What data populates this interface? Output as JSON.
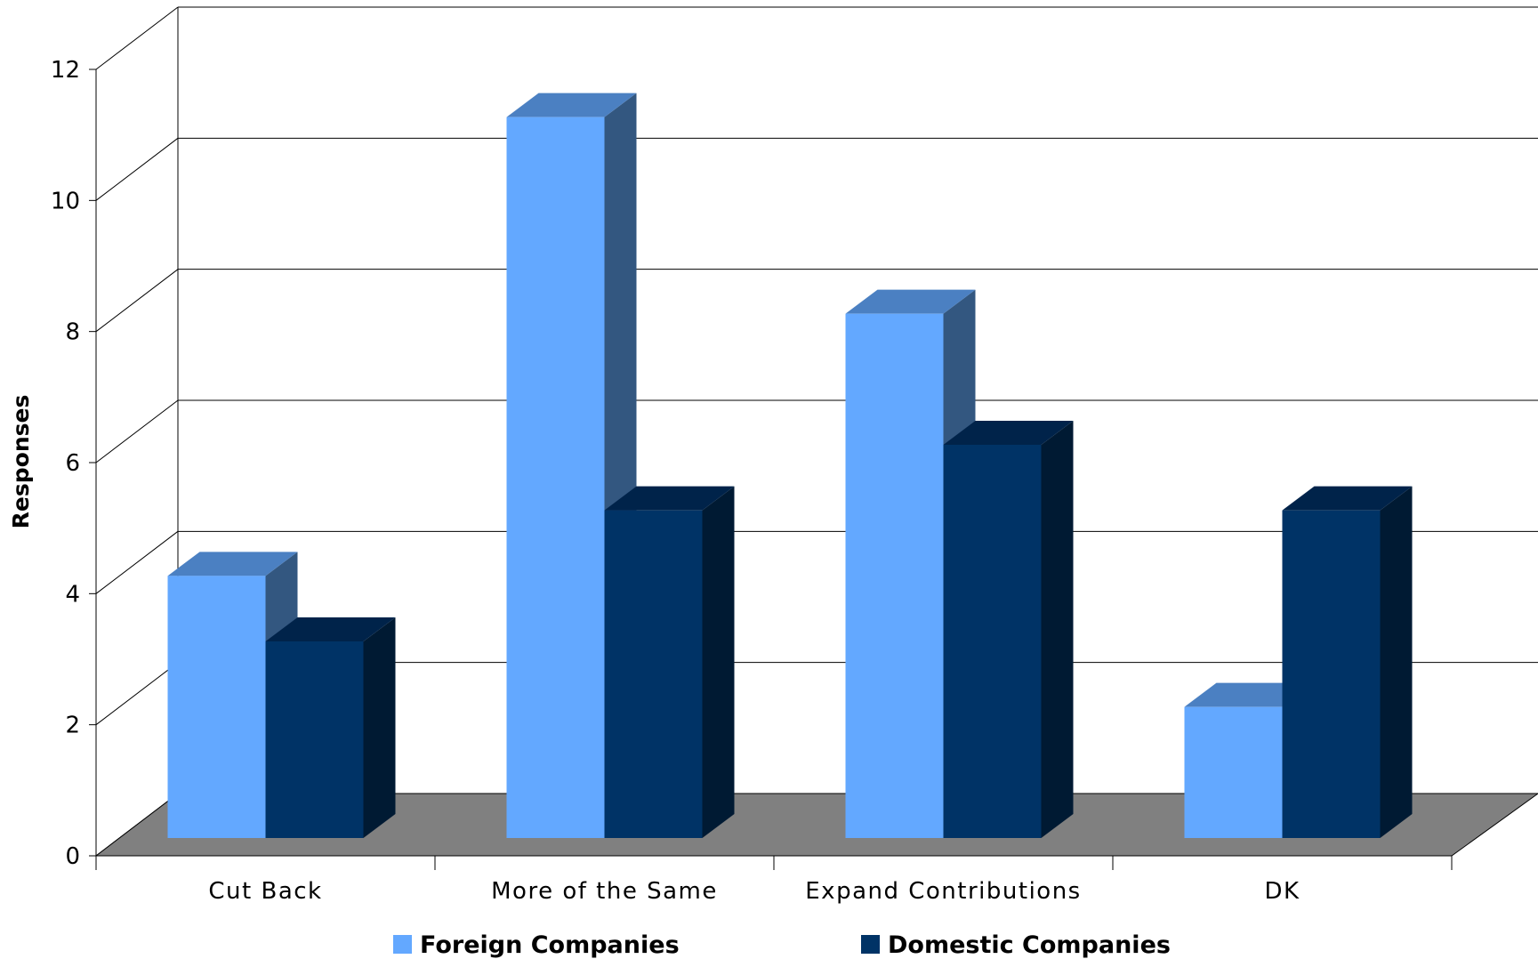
{
  "chart_data": {
    "type": "bar",
    "style": "3d-clustered-column",
    "categories": [
      "Cut Back",
      "More of the Same",
      "Expand Contributions",
      "DK"
    ],
    "series": [
      {
        "name": "Foreign Companies",
        "values": [
          4,
          11,
          8,
          2
        ],
        "color": "#63A8FF",
        "top_color": "#4B80C2",
        "side_color": "#335780"
      },
      {
        "name": "Domestic Companies",
        "values": [
          3,
          5,
          6,
          5
        ],
        "color": "#003366",
        "top_color": "#00234A",
        "side_color": "#001A33"
      }
    ],
    "title": "",
    "xlabel": "",
    "ylabel": "Responses",
    "ylim": [
      0,
      12
    ],
    "yticks": [
      0,
      2,
      4,
      6,
      8,
      10,
      12
    ],
    "grid": true,
    "legend_position": "bottom",
    "floor_color": "#808080"
  }
}
